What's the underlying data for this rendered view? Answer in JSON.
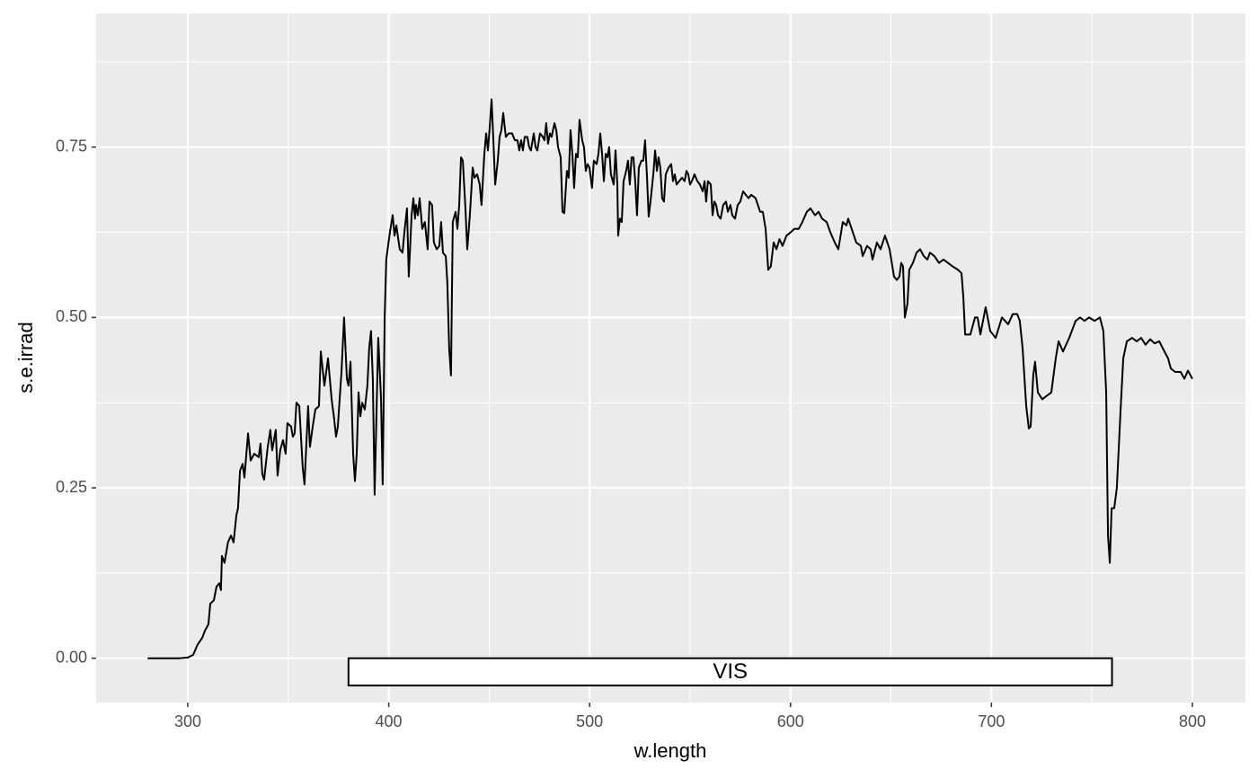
{
  "chart_data": {
    "type": "line",
    "x_label": "w.length",
    "y_label": "s.e.irrad",
    "xlim": [
      254.4,
      826.4
    ],
    "ylim": [
      -0.065,
      0.946
    ],
    "xticks": [
      300,
      400,
      500,
      600,
      700,
      800
    ],
    "yticks": [
      {
        "value": 0,
        "label": "0.00"
      },
      {
        "value": 0.25,
        "label": "0.25"
      },
      {
        "value": 0.5,
        "label": "0.50"
      },
      {
        "value": 0.75,
        "label": "0.75"
      }
    ],
    "grid": true,
    "color": "#000000",
    "annotations": [
      {
        "text": "VIS",
        "x": [
          380,
          760
        ],
        "y": [
          -0.04,
          0
        ]
      }
    ],
    "x": [
      280,
      296,
      300,
      302.7,
      304.9,
      307.2,
      308.5,
      310.3,
      311.2,
      313,
      314.3,
      315.7,
      316.5,
      317,
      318.3,
      320,
      321.5,
      322.8,
      324.2,
      325,
      326,
      327.3,
      328.2,
      330,
      331.3,
      333.1,
      335.3,
      336.2,
      337.1,
      338,
      339.8,
      341.1,
      342,
      343.8,
      344.7,
      346,
      347.4,
      348.7,
      349.6,
      351.4,
      352.3,
      353.2,
      354.1,
      355.5,
      357.2,
      358.1,
      359.9,
      360.8,
      362.2,
      363.5,
      365.3,
      366.2,
      368,
      369.8,
      371.6,
      372.9,
      373.8,
      374.7,
      376.5,
      377.8,
      379.2,
      380,
      381,
      382.3,
      383.2,
      384.1,
      385,
      385.9,
      386.8,
      388.1,
      389.4,
      390.3,
      391.2,
      392.1,
      393,
      394.8,
      396.2,
      397,
      398,
      398.8,
      400.6,
      402,
      402.9,
      403.8,
      405.5,
      406.9,
      407.8,
      409.1,
      410,
      411.4,
      412.3,
      413.1,
      413.6,
      414.5,
      415.4,
      416.7,
      418,
      419.4,
      420.3,
      421.6,
      422.5,
      423.9,
      425.2,
      426.1,
      427,
      428.4,
      429.2,
      430.1,
      431,
      431.9,
      433.3,
      434.2,
      435.1,
      436,
      436.9,
      438.2,
      439.1,
      440.4,
      441.8,
      442.7,
      444,
      445.3,
      446.2,
      447.6,
      448.5,
      449.4,
      450.3,
      451.2,
      452.1,
      453,
      454.3,
      455.2,
      456.1,
      457,
      458.3,
      459.7,
      461.4,
      462.8,
      464.1,
      465,
      465.9,
      466.8,
      467.7,
      469,
      469.9,
      470.8,
      472.2,
      473.1,
      474,
      475.3,
      476.7,
      477.5,
      478.4,
      479.3,
      480.2,
      481.1,
      482.5,
      483.4,
      484.3,
      485.6,
      486.5,
      487.4,
      488.7,
      489.6,
      490.5,
      491.4,
      492.3,
      493.2,
      494.1,
      495,
      496.3,
      497.2,
      498.1,
      499,
      499.9,
      501.2,
      502.1,
      503.5,
      504.4,
      505.3,
      506.2,
      507.1,
      508,
      508.9,
      509.7,
      510.6,
      512,
      512.9,
      513.8,
      514.2,
      515.1,
      516,
      516.9,
      518.2,
      519.1,
      520,
      520.9,
      521.8,
      522.7,
      523.6,
      524.5,
      525.8,
      526.7,
      527.6,
      528.5,
      529.4,
      530.3,
      531.7,
      532.6,
      533.5,
      534.3,
      535.2,
      536.1,
      537,
      537.9,
      539.3,
      540.6,
      541.5,
      542.4,
      543.3,
      544.6,
      546,
      547.3,
      548.2,
      549.1,
      550,
      550.9,
      552.2,
      553.6,
      554.9,
      556.3,
      557.2,
      558,
      558.9,
      560.3,
      561.2,
      562.1,
      563,
      563.9,
      565.2,
      566.5,
      567.9,
      568.8,
      570.1,
      571,
      572.4,
      573.7,
      575,
      576.4,
      577.7,
      579.1,
      580.4,
      582.6,
      584.9,
      586.2,
      587.6,
      588.9,
      590.2,
      591.6,
      593,
      594.5,
      596,
      598,
      600.1,
      601.9,
      604.1,
      605.9,
      608.1,
      609.9,
      612.2,
      614,
      615.7,
      618,
      619.8,
      622,
      623.8,
      626,
      627.8,
      628.7,
      631,
      632.7,
      635,
      635.9,
      638.1,
      639.9,
      640.8,
      643,
      644.8,
      647,
      649.3,
      651.5,
      652.9,
      654.2,
      655.1,
      656,
      656.9,
      658.2,
      659.1,
      660.9,
      662.7,
      664.5,
      666.3,
      668.1,
      669.4,
      671.6,
      673.9,
      676.1,
      678.4,
      680.6,
      683.3,
      685.1,
      686,
      686.9,
      689.5,
      691.8,
      693.1,
      694.5,
      697.1,
      699.4,
      702.1,
      705.2,
      708.3,
      710.6,
      712.8,
      714.1,
      715.5,
      717.3,
      718.6,
      719.5,
      720.8,
      721.7,
      723.1,
      725.3,
      727.5,
      729.8,
      732,
      733.4,
      735.6,
      738.7,
      741.9,
      744.1,
      746.3,
      748.6,
      751.3,
      754,
      755.7,
      757.1,
      758,
      758.9,
      759.8,
      761.1,
      762.4,
      764.2,
      765.6,
      767.4,
      770,
      772.3,
      774.5,
      776.7,
      779,
      781.2,
      783.5,
      786.1,
      787.9,
      789.3,
      791.5,
      794.2,
      796,
      797.8,
      800
    ],
    "values": [
      0,
      0,
      0.001,
      0.005,
      0.02,
      0.03,
      0.04,
      0.05,
      0.08,
      0.085,
      0.105,
      0.11,
      0.1,
      0.15,
      0.14,
      0.17,
      0.18,
      0.17,
      0.21,
      0.22,
      0.275,
      0.285,
      0.265,
      0.33,
      0.29,
      0.3,
      0.295,
      0.315,
      0.27,
      0.262,
      0.31,
      0.335,
      0.305,
      0.335,
      0.268,
      0.305,
      0.32,
      0.3,
      0.345,
      0.34,
      0.325,
      0.33,
      0.375,
      0.37,
      0.28,
      0.255,
      0.37,
      0.31,
      0.34,
      0.365,
      0.37,
      0.45,
      0.4,
      0.44,
      0.38,
      0.35,
      0.325,
      0.34,
      0.42,
      0.5,
      0.41,
      0.4,
      0.435,
      0.3,
      0.26,
      0.3,
      0.39,
      0.355,
      0.375,
      0.365,
      0.4,
      0.455,
      0.48,
      0.41,
      0.24,
      0.47,
      0.38,
      0.255,
      0.5,
      0.585,
      0.625,
      0.65,
      0.62,
      0.635,
      0.6,
      0.595,
      0.625,
      0.66,
      0.56,
      0.65,
      0.675,
      0.645,
      0.665,
      0.65,
      0.675,
      0.63,
      0.64,
      0.6,
      0.67,
      0.665,
      0.61,
      0.6,
      0.605,
      0.64,
      0.595,
      0.59,
      0.55,
      0.455,
      0.415,
      0.64,
      0.655,
      0.63,
      0.665,
      0.735,
      0.73,
      0.66,
      0.6,
      0.65,
      0.72,
      0.705,
      0.71,
      0.695,
      0.665,
      0.74,
      0.77,
      0.745,
      0.78,
      0.82,
      0.76,
      0.695,
      0.73,
      0.765,
      0.775,
      0.8,
      0.765,
      0.77,
      0.77,
      0.76,
      0.76,
      0.745,
      0.76,
      0.745,
      0.765,
      0.765,
      0.75,
      0.745,
      0.77,
      0.75,
      0.745,
      0.77,
      0.765,
      0.76,
      0.785,
      0.755,
      0.77,
      0.765,
      0.785,
      0.775,
      0.75,
      0.735,
      0.655,
      0.653,
      0.715,
      0.705,
      0.775,
      0.74,
      0.69,
      0.74,
      0.735,
      0.79,
      0.76,
      0.75,
      0.715,
      0.725,
      0.72,
      0.69,
      0.73,
      0.725,
      0.74,
      0.77,
      0.74,
      0.7,
      0.74,
      0.735,
      0.75,
      0.71,
      0.695,
      0.745,
      0.695,
      0.62,
      0.645,
      0.64,
      0.7,
      0.715,
      0.73,
      0.695,
      0.735,
      0.735,
      0.7,
      0.65,
      0.72,
      0.73,
      0.73,
      0.76,
      0.71,
      0.648,
      0.67,
      0.71,
      0.745,
      0.715,
      0.735,
      0.72,
      0.675,
      0.67,
      0.71,
      0.72,
      0.725,
      0.7,
      0.71,
      0.695,
      0.7,
      0.705,
      0.7,
      0.715,
      0.71,
      0.695,
      0.7,
      0.71,
      0.7,
      0.695,
      0.685,
      0.7,
      0.67,
      0.7,
      0.695,
      0.65,
      0.67,
      0.665,
      0.65,
      0.645,
      0.665,
      0.67,
      0.655,
      0.665,
      0.65,
      0.645,
      0.665,
      0.67,
      0.685,
      0.68,
      0.675,
      0.68,
      0.675,
      0.655,
      0.655,
      0.63,
      0.57,
      0.575,
      0.61,
      0.6,
      0.615,
      0.605,
      0.62,
      0.625,
      0.63,
      0.63,
      0.64,
      0.655,
      0.66,
      0.65,
      0.655,
      0.645,
      0.64,
      0.625,
      0.61,
      0.6,
      0.64,
      0.635,
      0.645,
      0.625,
      0.61,
      0.605,
      0.59,
      0.605,
      0.6,
      0.585,
      0.61,
      0.6,
      0.62,
      0.6,
      0.56,
      0.555,
      0.56,
      0.58,
      0.575,
      0.5,
      0.52,
      0.57,
      0.58,
      0.595,
      0.6,
      0.59,
      0.585,
      0.595,
      0.59,
      0.58,
      0.585,
      0.58,
      0.575,
      0.57,
      0.565,
      0.53,
      0.475,
      0.475,
      0.5,
      0.5,
      0.475,
      0.515,
      0.48,
      0.47,
      0.5,
      0.49,
      0.505,
      0.505,
      0.495,
      0.455,
      0.37,
      0.337,
      0.34,
      0.415,
      0.435,
      0.39,
      0.38,
      0.385,
      0.39,
      0.44,
      0.465,
      0.45,
      0.47,
      0.495,
      0.5,
      0.495,
      0.5,
      0.495,
      0.5,
      0.48,
      0.39,
      0.18,
      0.14,
      0.22,
      0.22,
      0.25,
      0.36,
      0.44,
      0.465,
      0.47,
      0.465,
      0.47,
      0.46,
      0.468,
      0.462,
      0.465,
      0.45,
      0.44,
      0.425,
      0.42,
      0.42,
      0.41,
      0.422,
      0.41
    ]
  }
}
